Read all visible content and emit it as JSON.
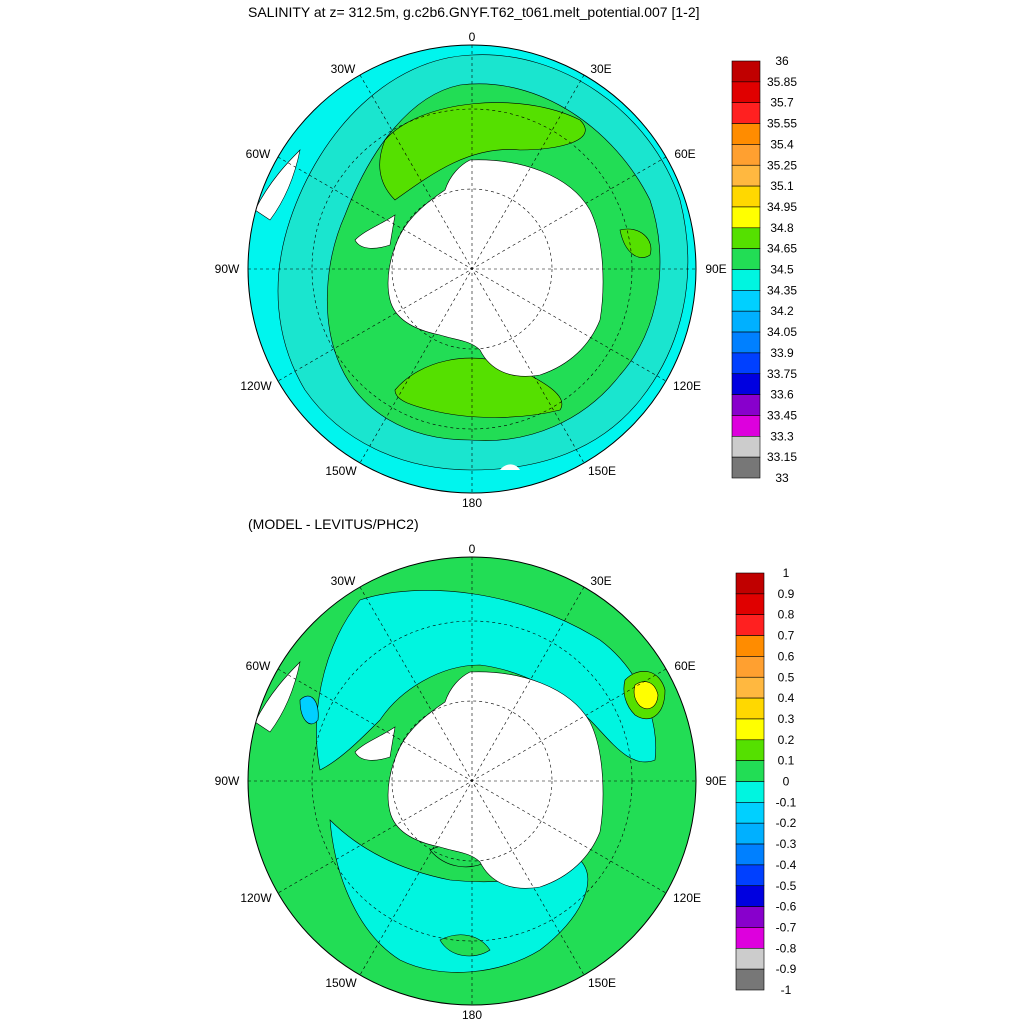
{
  "maps": [
    {
      "title": "SALINITY at z= 312.5m, g.c2b6.GNYF.T62_t061.melt_potential.007 [1-2]",
      "lon_labels": {
        "0": "0",
        "30E": "30E",
        "60E": "60E",
        "90E": "90E",
        "120E": "120E",
        "150E": "150E",
        "180": "180",
        "150W": "150W",
        "120W": "120W",
        "90W": "90W",
        "60W": "60W",
        "30W": "30W"
      },
      "colorbar": {
        "labels": [
          "36",
          "35.85",
          "35.7",
          "35.55",
          "35.4",
          "35.25",
          "35.1",
          "34.95",
          "34.8",
          "34.65",
          "34.5",
          "34.35",
          "34.2",
          "34.05",
          "33.9",
          "33.75",
          "33.6",
          "33.45",
          "33.3",
          "33.15",
          "33"
        ],
        "colors": [
          "#c00000",
          "#e00000",
          "#ff2020",
          "#ff8c00",
          "#ffa030",
          "#ffb840",
          "#ffd800",
          "#ffff00",
          "#55e000",
          "#22dd55",
          "#00f5e0",
          "#00d0ff",
          "#00b0ff",
          "#0080ff",
          "#0040ff",
          "#0000e0",
          "#8800cc",
          "#dd00dd",
          "#cccccc",
          "#777777"
        ]
      }
    },
    {
      "title": "(MODEL - LEVITUS/PHC2)",
      "lon_labels": {
        "0": "0",
        "30E": "30E",
        "60E": "60E",
        "90E": "90E",
        "120E": "120E",
        "150E": "150E",
        "180": "180",
        "150W": "150W",
        "120W": "120W",
        "90W": "90W",
        "60W": "60W",
        "30W": "30W"
      },
      "colorbar": {
        "labels": [
          "1",
          "0.9",
          "0.8",
          "0.7",
          "0.6",
          "0.5",
          "0.4",
          "0.3",
          "0.2",
          "0.1",
          "0",
          "-0.1",
          "-0.2",
          "-0.3",
          "-0.4",
          "-0.5",
          "-0.6",
          "-0.7",
          "-0.8",
          "-0.9",
          "-1"
        ],
        "colors": [
          "#c00000",
          "#e00000",
          "#ff2020",
          "#ff8c00",
          "#ffa030",
          "#ffb840",
          "#ffd800",
          "#ffff00",
          "#55e000",
          "#22dd55",
          "#00f5e0",
          "#00d0ff",
          "#00b0ff",
          "#0080ff",
          "#0040ff",
          "#0000e0",
          "#8800cc",
          "#dd00dd",
          "#cccccc",
          "#777777"
        ]
      }
    }
  ]
}
